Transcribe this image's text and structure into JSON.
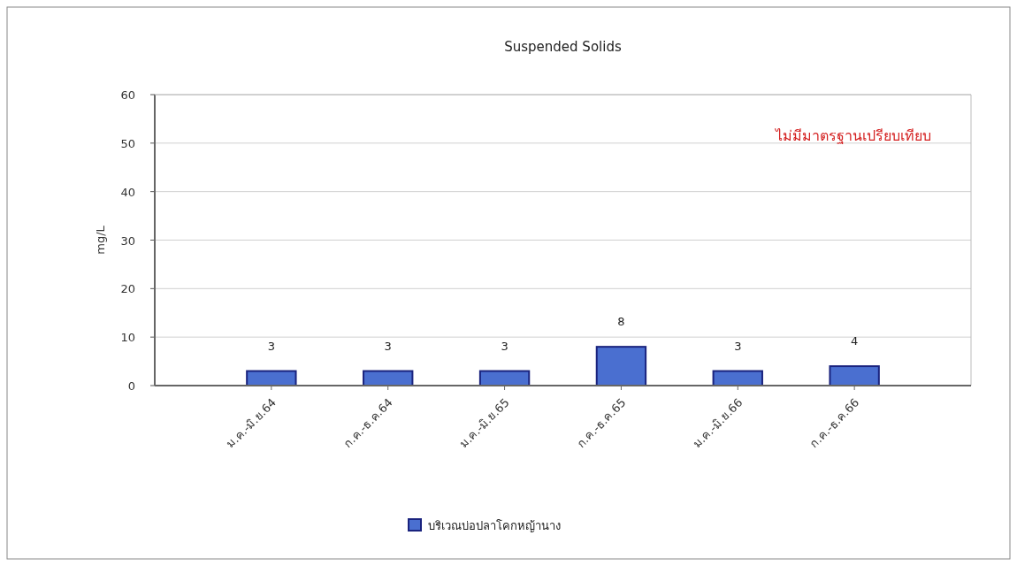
{
  "chart_data": {
    "type": "bar",
    "title": "Suspended Solids",
    "ylabel": "mg/L",
    "categories": [
      "ม.ค.-มิ.ย.64",
      "ก.ค.-ธ.ค.64",
      "ม.ค.-มิ.ย.65",
      "ก.ค.-ธ.ค.65",
      "ม.ค.-มิ.ย.66",
      "ก.ค.-ธ.ค.66"
    ],
    "series": [
      {
        "name": "บริเวณบ่อปลาโคกหญ้านาง",
        "color": "#4a6fd0",
        "values": [
          3,
          3,
          3,
          8,
          3,
          4
        ]
      }
    ],
    "ylim": [
      0,
      60
    ],
    "yticks": [
      0,
      10,
      20,
      30,
      40,
      50,
      60
    ],
    "grid": "y",
    "legend": "bottom",
    "data_labels": true,
    "annotations": [
      "ไม่มีมาตรฐานเปรียบเทียบ"
    ]
  }
}
